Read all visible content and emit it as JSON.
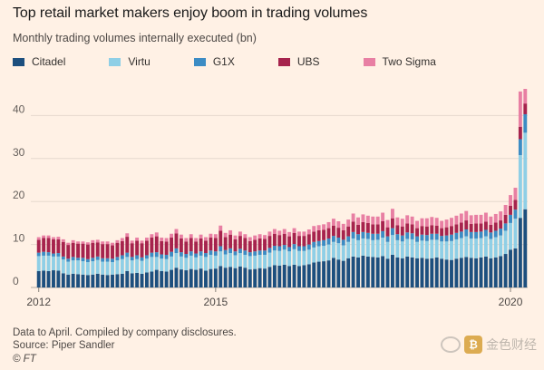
{
  "chart_data": {
    "type": "bar",
    "stacked": true,
    "title": "Top retail market makers enjoy boom in trading volumes",
    "subtitle": "Monthly trading volumes internally executed (bn)",
    "xlabel": "",
    "ylabel": "",
    "ylim": [
      0,
      50
    ],
    "yticks": [
      0,
      10,
      20,
      30,
      40
    ],
    "grid": true,
    "legend_position": "top",
    "x_tick_labels": [
      {
        "label": "2012",
        "index": 0
      },
      {
        "label": "2015",
        "index": 36
      },
      {
        "label": "2020",
        "index": 96
      }
    ],
    "categories_note": "Monthly from Jan 2012 to Apr 2020",
    "series": [
      {
        "name": "Citadel",
        "color": "#1d4f7e",
        "values": [
          3.8,
          3.9,
          3.8,
          4.0,
          3.9,
          3.3,
          3.0,
          3.2,
          3.1,
          3.0,
          2.9,
          3.0,
          3.2,
          3.0,
          2.9,
          3.0,
          3.1,
          3.2,
          3.8,
          3.3,
          3.4,
          3.2,
          3.5,
          3.7,
          4.1,
          3.8,
          3.7,
          4.1,
          4.6,
          4.2,
          4.0,
          4.3,
          4.1,
          4.4,
          3.9,
          4.3,
          4.4,
          5.0,
          4.6,
          4.8,
          4.5,
          4.9,
          4.6,
          4.2,
          4.3,
          4.5,
          4.4,
          4.8,
          5.2,
          5.1,
          5.3,
          5.0,
          5.3,
          5.0,
          5.2,
          5.4,
          5.8,
          6.0,
          6.1,
          6.3,
          6.9,
          6.5,
          6.2,
          6.8,
          7.2,
          7.0,
          7.4,
          7.2,
          7.1,
          7.0,
          7.3,
          6.7,
          7.6,
          7.0,
          6.8,
          7.2,
          7.0,
          6.8,
          6.9,
          6.7,
          6.8,
          7.0,
          6.7,
          6.5,
          6.4,
          6.7,
          6.9,
          7.1,
          6.9,
          6.8,
          7.0,
          7.2,
          6.8,
          7.0,
          7.3,
          7.8,
          8.8,
          9.1,
          16.2,
          18.2
        ]
      },
      {
        "name": "Virtu",
        "color": "#8fcfe6",
        "values": [
          3.5,
          3.5,
          3.6,
          3.2,
          3.3,
          3.2,
          3.0,
          3.1,
          3.2,
          3.1,
          3.0,
          3.1,
          3.2,
          3.0,
          3.1,
          2.9,
          3.2,
          3.4,
          3.3,
          3.0,
          3.2,
          3.0,
          3.2,
          3.4,
          3.0,
          2.9,
          2.9,
          3.1,
          3.4,
          3.0,
          2.9,
          3.1,
          2.9,
          3.0,
          3.2,
          3.3,
          3.0,
          3.4,
          3.1,
          3.2,
          3.0,
          3.1,
          3.0,
          3.1,
          3.1,
          3.1,
          3.2,
          3.3,
          3.4,
          3.4,
          3.5,
          3.4,
          3.6,
          3.5,
          3.3,
          3.4,
          3.5,
          3.6,
          3.6,
          3.7,
          3.7,
          3.8,
          3.6,
          3.8,
          4.2,
          4.0,
          4.0,
          4.1,
          3.9,
          4.1,
          4.3,
          3.9,
          4.6,
          4.0,
          3.9,
          4.1,
          4.2,
          3.8,
          4.0,
          4.1,
          4.3,
          4.1,
          4.0,
          4.2,
          4.4,
          4.5,
          4.6,
          4.8,
          4.5,
          4.6,
          4.5,
          4.7,
          4.5,
          4.7,
          4.8,
          5.4,
          6.2,
          6.9,
          14.6,
          17.8
        ]
      },
      {
        "name": "G1X",
        "color": "#3c8cc4",
        "values": [
          0.8,
          0.9,
          0.8,
          0.7,
          0.8,
          0.7,
          0.7,
          0.8,
          0.6,
          0.8,
          0.7,
          0.8,
          0.8,
          0.8,
          0.8,
          0.8,
          0.8,
          0.9,
          1.0,
          0.8,
          0.9,
          0.8,
          0.8,
          1.0,
          1.1,
          1.0,
          1.0,
          1.1,
          1.1,
          1.0,
          0.9,
          1.0,
          0.9,
          1.0,
          0.9,
          1.0,
          1.0,
          1.2,
          1.0,
          1.1,
          0.9,
          1.0,
          1.0,
          0.9,
          1.0,
          1.0,
          1.0,
          1.1,
          1.1,
          1.1,
          1.1,
          1.0,
          1.2,
          1.1,
          1.1,
          1.2,
          1.3,
          1.2,
          1.3,
          1.4,
          1.4,
          1.3,
          1.3,
          1.3,
          1.5,
          1.4,
          1.5,
          1.4,
          1.5,
          1.4,
          1.5,
          1.3,
          1.6,
          1.4,
          1.4,
          1.5,
          1.4,
          1.3,
          1.4,
          1.4,
          1.4,
          1.4,
          1.3,
          1.4,
          1.5,
          1.5,
          1.5,
          1.6,
          1.5,
          1.5,
          1.5,
          1.5,
          1.5,
          1.5,
          1.6,
          1.7,
          1.9,
          2.1,
          3.7,
          4.3
        ]
      },
      {
        "name": "UBS",
        "color": "#a6234d",
        "values": [
          3.0,
          3.2,
          3.3,
          3.3,
          3.2,
          3.4,
          3.2,
          3.3,
          3.3,
          3.3,
          3.4,
          3.5,
          3.3,
          3.3,
          3.3,
          3.1,
          3.3,
          3.3,
          3.7,
          3.2,
          3.4,
          3.3,
          3.4,
          3.5,
          3.7,
          3.1,
          3.1,
          3.3,
          3.5,
          3.2,
          2.9,
          3.1,
          2.8,
          3.0,
          2.9,
          3.0,
          3.1,
          3.6,
          3.0,
          3.2,
          2.8,
          3.0,
          2.9,
          2.6,
          2.7,
          2.8,
          2.7,
          2.8,
          2.8,
          2.6,
          2.6,
          2.5,
          2.6,
          2.4,
          2.4,
          2.4,
          2.4,
          2.5,
          2.4,
          2.4,
          2.4,
          2.3,
          2.2,
          2.3,
          2.4,
          2.2,
          2.3,
          2.3,
          2.2,
          2.2,
          2.3,
          2.1,
          2.3,
          2.1,
          2.1,
          2.1,
          2.1,
          1.9,
          2.0,
          2.0,
          2.0,
          1.9,
          1.8,
          1.9,
          2.0,
          2.0,
          2.1,
          2.1,
          1.9,
          2.0,
          1.9,
          1.9,
          1.8,
          1.9,
          1.9,
          2.0,
          2.1,
          2.3,
          2.9,
          2.5
        ]
      },
      {
        "name": "Two Sigma",
        "color": "#e87fa3",
        "values": [
          0.6,
          0.6,
          0.6,
          0.5,
          0.6,
          0.6,
          0.5,
          0.6,
          0.5,
          0.5,
          0.5,
          0.6,
          0.6,
          0.6,
          0.6,
          0.6,
          0.6,
          0.7,
          0.8,
          0.6,
          0.7,
          0.6,
          0.7,
          0.8,
          0.9,
          0.8,
          0.8,
          0.9,
          1.0,
          0.9,
          0.8,
          0.9,
          0.8,
          0.9,
          0.8,
          0.9,
          0.9,
          1.2,
          1.0,
          1.0,
          0.9,
          1.0,
          0.9,
          0.9,
          1.0,
          1.0,
          0.9,
          1.0,
          1.1,
          1.0,
          1.1,
          1.0,
          1.1,
          1.0,
          1.0,
          1.1,
          1.3,
          1.2,
          1.3,
          1.4,
          1.6,
          1.5,
          1.5,
          1.6,
          1.9,
          1.7,
          1.8,
          1.7,
          1.8,
          1.8,
          2.0,
          1.7,
          2.2,
          1.8,
          1.8,
          1.9,
          1.8,
          1.7,
          1.8,
          1.9,
          1.9,
          1.8,
          1.7,
          1.8,
          1.9,
          2.0,
          2.1,
          2.2,
          2.0,
          2.0,
          2.0,
          2.1,
          1.9,
          2.0,
          2.1,
          2.3,
          2.5,
          2.8,
          8.2,
          3.4
        ]
      }
    ]
  },
  "footnotes": {
    "line1": "Data to April. Compiled by company disclosures.",
    "line2": "Source: Piper Sandler",
    "line3": "© FT"
  },
  "watermark": {
    "text": "金色财经"
  }
}
